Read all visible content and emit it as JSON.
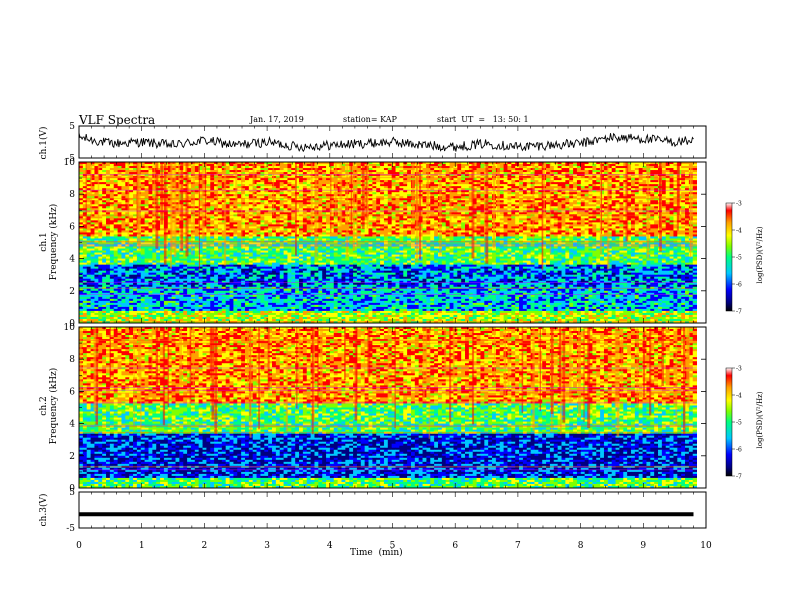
{
  "header": {
    "title": "VLF Spectra",
    "date": "Jan. 17, 2019",
    "station": "station= KAP",
    "start": "start  UT  =   13: 50: 1"
  },
  "colors": {
    "spectrogram_palette": [
      "#000080",
      "#0000ff",
      "#00c8ff",
      "#00ff80",
      "#80ff00",
      "#ffff00",
      "#ffa000",
      "#ff0000",
      "#ffffff"
    ],
    "trace": "#000000"
  },
  "chart_data": [
    {
      "type": "line",
      "panel": "ch1-waveform",
      "ylabel": "ch.1(V)",
      "yticks": [
        "5",
        "-5"
      ],
      "ylim": [
        -5,
        5
      ],
      "x": [
        0,
        0.5,
        1,
        1.5,
        2,
        2.5,
        3,
        3.5,
        4,
        4.5,
        5,
        5.5,
        6,
        6.5,
        7,
        7.5,
        8,
        8.5,
        9,
        9.5,
        9.8
      ],
      "y": [
        1.5,
        -0.5,
        0,
        -1,
        0.5,
        -1,
        0,
        -1.5,
        -1,
        -0.5,
        0,
        -1,
        -1.5,
        -0.5,
        -1.5,
        -1,
        -0.5,
        1.5,
        1,
        0,
        0.5
      ],
      "xlim": [
        0,
        10
      ]
    },
    {
      "type": "heatmap",
      "panel": "ch1-spectrogram",
      "ylabel": "ch.1\nFrequency (kHz)",
      "yticks": [
        "0",
        "2",
        "4",
        "6",
        "8",
        "10"
      ],
      "ylim": [
        0,
        10
      ],
      "xlim": [
        0,
        10
      ],
      "colorbar": {
        "label": "log(PSD)(V²/Hz)",
        "ticks": [
          "-3",
          "-4",
          "-5",
          "-6",
          "-7"
        ],
        "range": [
          -7,
          -3
        ]
      },
      "bands": [
        {
          "from": 0,
          "to": 0.8,
          "level": -4.5
        },
        {
          "from": 0.8,
          "to": 2.2,
          "level": -5.7
        },
        {
          "from": 2.2,
          "to": 3.6,
          "level": -6.0
        },
        {
          "from": 3.6,
          "to": 5.4,
          "level": -5.0
        },
        {
          "from": 5.4,
          "to": 10,
          "level": -3.8
        }
      ]
    },
    {
      "type": "heatmap",
      "panel": "ch2-spectrogram",
      "ylabel": "ch.2\nFrequency (kHz)",
      "yticks": [
        "0",
        "2",
        "4",
        "6",
        "8",
        "10"
      ],
      "ylim": [
        0,
        10
      ],
      "xlim": [
        0,
        10
      ],
      "colorbar": {
        "label": "log(PSD)(V²/Hz)",
        "ticks": [
          "-3",
          "-4",
          "-5",
          "-6",
          "-7"
        ],
        "range": [
          -7,
          -3
        ]
      },
      "bands": [
        {
          "from": 0,
          "to": 0.6,
          "level": -5.0
        },
        {
          "from": 0.6,
          "to": 3.4,
          "level": -6.3
        },
        {
          "from": 3.4,
          "to": 5.2,
          "level": -5.0
        },
        {
          "from": 5.2,
          "to": 10,
          "level": -3.8
        }
      ]
    },
    {
      "type": "line",
      "panel": "ch3-waveform",
      "ylabel": "ch.3(V)",
      "yticks": [
        "5",
        "-5"
      ],
      "ylim": [
        -5,
        5
      ],
      "x": [
        0,
        9.8
      ],
      "y": [
        -1.2,
        -1.2
      ],
      "xlim": [
        0,
        10
      ],
      "xlabel": "Time  (min)",
      "xticks": [
        "0",
        "1",
        "2",
        "3",
        "4",
        "5",
        "6",
        "7",
        "8",
        "9",
        "10"
      ]
    }
  ]
}
